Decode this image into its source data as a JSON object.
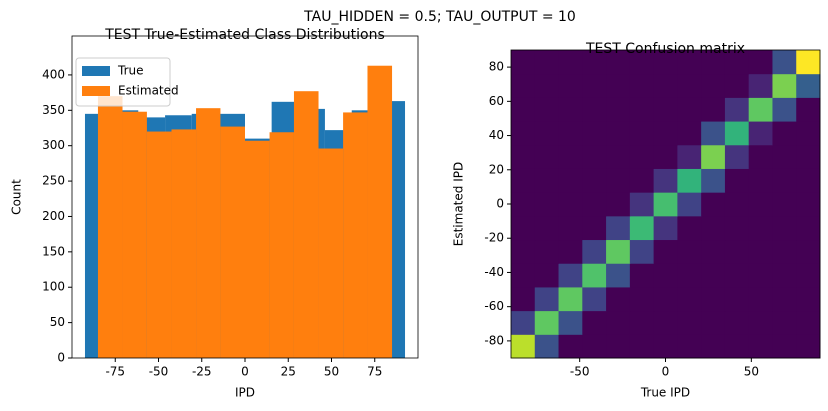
{
  "suptitle": "TAU_HIDDEN = 0.5; TAU_OUTPUT = 10",
  "chart_data": [
    {
      "type": "histogram",
      "title": "TEST True-Estimated Class Distributions",
      "x_label": "IPD",
      "y_label": "Count",
      "xlim": [
        -100,
        100
      ],
      "xticks": [
        -75,
        -50,
        -25,
        0,
        25,
        50,
        75
      ],
      "ylim": [
        0,
        455
      ],
      "yticks": [
        0,
        50,
        100,
        150,
        200,
        250,
        300,
        350,
        400
      ],
      "legend": "upper left",
      "series": [
        {
          "name": "True",
          "color": "#1f77b4",
          "bins": [
            -92.5,
            -77.1,
            -61.7,
            -46.2,
            -30.8,
            -15.4,
            0,
            15.4,
            30.8,
            46.2,
            61.7,
            77.1,
            92.5
          ],
          "values": [
            345,
            350,
            340,
            343,
            345,
            345,
            310,
            362,
            352,
            322,
            350,
            363
          ]
        },
        {
          "name": "Estimated",
          "color": "#ff7f0e",
          "bins": [
            -85,
            -70.8,
            -56.7,
            -42.5,
            -28.3,
            -14.2,
            0,
            14.2,
            28.3,
            42.5,
            56.7,
            70.8,
            85
          ],
          "values": [
            370,
            348,
            320,
            323,
            353,
            327,
            307,
            319,
            377,
            296,
            347,
            413
          ]
        }
      ]
    },
    {
      "type": "heatmap",
      "title": "TEST Confusion matrix",
      "x_label": "True IPD",
      "y_label": "Estimated IPD",
      "colormap": "viridis",
      "xlim": [
        -90,
        90
      ],
      "xticks": [
        -50,
        0,
        50
      ],
      "ylim": [
        -90,
        90
      ],
      "yticks": [
        -80,
        -60,
        -40,
        -20,
        0,
        20,
        40,
        60,
        80
      ],
      "z": [
        [
          0.9,
          0.25,
          0,
          0,
          0,
          0,
          0,
          0,
          0,
          0,
          0,
          0,
          0
        ],
        [
          0.2,
          0.75,
          0.25,
          0,
          0,
          0,
          0,
          0,
          0,
          0,
          0,
          0,
          0
        ],
        [
          0,
          0.2,
          0.75,
          0.2,
          0,
          0,
          0,
          0,
          0,
          0,
          0,
          0,
          0
        ],
        [
          0,
          0,
          0.2,
          0.72,
          0.25,
          0,
          0,
          0,
          0,
          0,
          0,
          0,
          0
        ],
        [
          0,
          0,
          0,
          0.2,
          0.75,
          0.2,
          0,
          0,
          0,
          0,
          0,
          0,
          0
        ],
        [
          0,
          0,
          0,
          0,
          0.2,
          0.68,
          0.15,
          0,
          0,
          0,
          0,
          0,
          0
        ],
        [
          0,
          0,
          0,
          0,
          0,
          0.15,
          0.7,
          0.2,
          0,
          0,
          0,
          0,
          0
        ],
        [
          0,
          0,
          0,
          0,
          0,
          0,
          0.15,
          0.65,
          0.25,
          0,
          0,
          0,
          0
        ],
        [
          0,
          0,
          0,
          0,
          0,
          0,
          0,
          0.1,
          0.8,
          0.15,
          0,
          0,
          0
        ],
        [
          0,
          0,
          0,
          0,
          0,
          0,
          0,
          0,
          0.25,
          0.65,
          0.1,
          0,
          0
        ],
        [
          0,
          0,
          0,
          0,
          0,
          0,
          0,
          0,
          0,
          0.15,
          0.75,
          0.25,
          0
        ],
        [
          0,
          0,
          0,
          0,
          0,
          0,
          0,
          0,
          0,
          0,
          0.1,
          0.8,
          0.3
        ],
        [
          0,
          0,
          0,
          0,
          0,
          0,
          0,
          0,
          0,
          0,
          0,
          0.25,
          1.0
        ]
      ]
    }
  ]
}
